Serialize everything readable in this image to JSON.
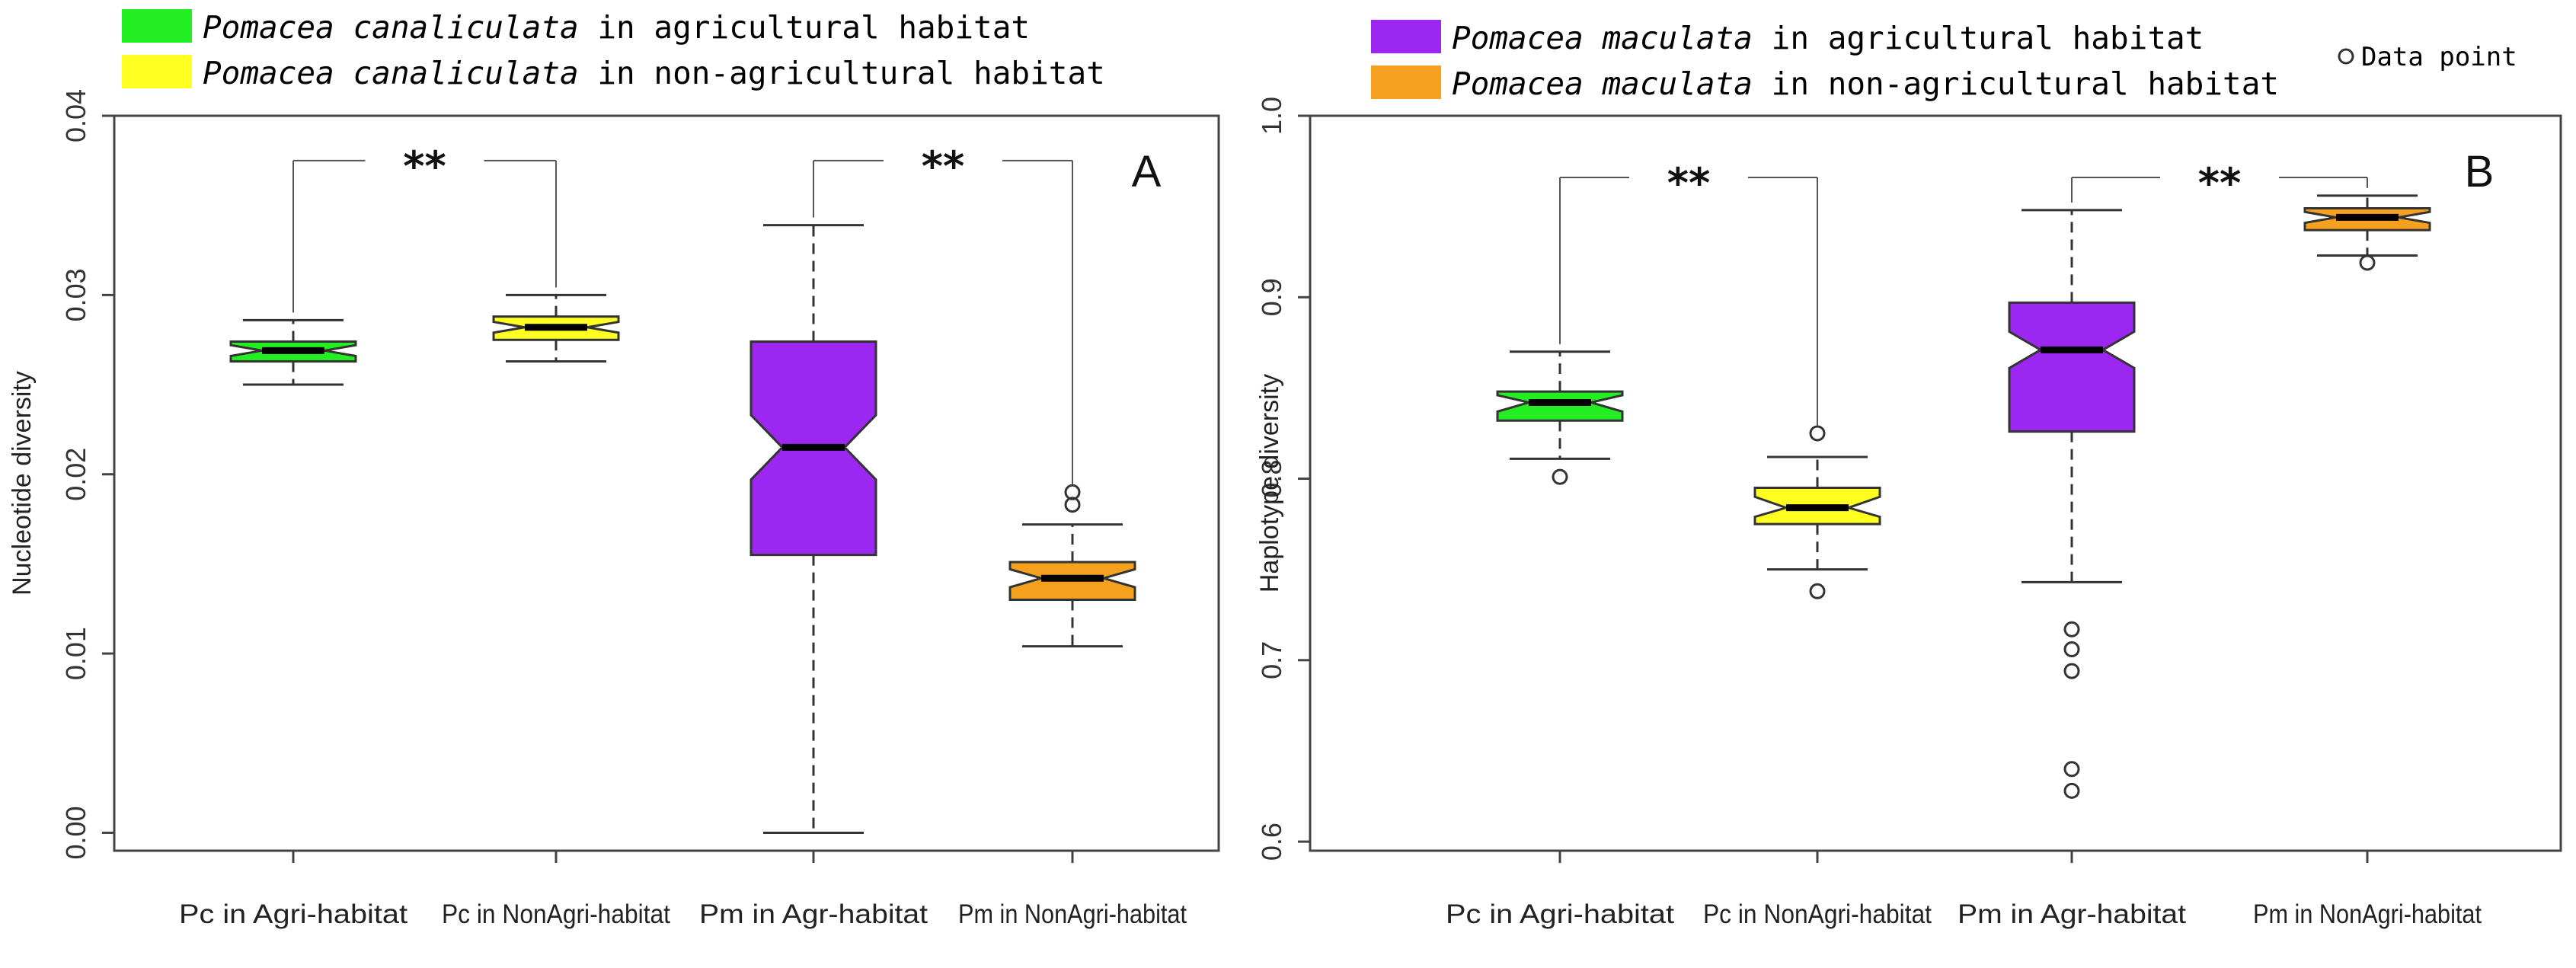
{
  "legend_left": [
    {
      "species": "Pomacea canaliculata",
      "habitat": "in agricultural habitat",
      "color": "#22ee22"
    },
    {
      "species": "Pomacea canaliculata",
      "habitat": "in non-agricultural habitat",
      "color": "#ffff22"
    }
  ],
  "legend_right": [
    {
      "species": "Pomacea maculata",
      "habitat": "in agricultural habitat",
      "color": "#9b27f0"
    },
    {
      "species": "Pomacea maculata",
      "habitat": "in non-agricultural habitat",
      "color": "#f5a11f"
    }
  ],
  "data_point_label": "Data point",
  "chart_data": [
    {
      "type": "box",
      "panel": "A",
      "ylabel": "Nucleotide diversity",
      "ylim": [
        -0.001,
        0.04
      ],
      "yticks": [
        0.0,
        0.01,
        0.02,
        0.03,
        0.04
      ],
      "ytick_labels": [
        "0.00",
        "0.01",
        "0.02",
        "0.03",
        "0.04"
      ],
      "categories": [
        "Pc in Agri-habitat",
        "Pc in NonAgri-habitat",
        "Pm in Agr-habitat",
        "Pm in NonAgri-habitat"
      ],
      "boxes": [
        {
          "whisker_low": 0.025,
          "q1": 0.0263,
          "median": 0.0269,
          "q3": 0.0274,
          "whisker_high": 0.0286,
          "notch_low": 0.0266,
          "notch_high": 0.0272,
          "outliers": [],
          "color": "#22ee22"
        },
        {
          "whisker_low": 0.0263,
          "q1": 0.0275,
          "median": 0.0282,
          "q3": 0.0288,
          "whisker_high": 0.03,
          "notch_low": 0.0279,
          "notch_high": 0.0285,
          "outliers": [],
          "color": "#ffff22"
        },
        {
          "whisker_low": 0.0,
          "q1": 0.0155,
          "median": 0.0215,
          "q3": 0.0274,
          "whisker_high": 0.0339,
          "notch_low": 0.0197,
          "notch_high": 0.0233,
          "outliers": [],
          "color": "#9b27f0"
        },
        {
          "whisker_low": 0.0104,
          "q1": 0.013,
          "median": 0.0142,
          "q3": 0.0151,
          "whisker_high": 0.0172,
          "notch_low": 0.0137,
          "notch_high": 0.0147,
          "outliers": [
            0.0183,
            0.019
          ],
          "color": "#f5a11f"
        }
      ],
      "significance": [
        {
          "from": 0,
          "to": 1,
          "label": "**",
          "y": 0.0375
        },
        {
          "from": 2,
          "to": 3,
          "label": "**",
          "y": 0.0375
        }
      ]
    },
    {
      "type": "box",
      "panel": "B",
      "ylabel": "Haplotype diversity",
      "ylim": [
        0.595,
        1.0
      ],
      "yticks": [
        0.6,
        0.7,
        0.8,
        0.9,
        1.0
      ],
      "ytick_labels": [
        "0.6",
        "0.7",
        "0.8",
        "0.9",
        "1.0"
      ],
      "categories": [
        "Pc in Agri-habitat",
        "Pc in NonAgri-habitat",
        "Pm in Agr-habitat",
        "Pm in NonAgri-habitat"
      ],
      "boxes": [
        {
          "whisker_low": 0.811,
          "q1": 0.832,
          "median": 0.842,
          "q3": 0.848,
          "whisker_high": 0.87,
          "notch_low": 0.837,
          "notch_high": 0.846,
          "outliers": [
            0.801
          ],
          "color": "#22ee22"
        },
        {
          "whisker_low": 0.75,
          "q1": 0.775,
          "median": 0.784,
          "q3": 0.795,
          "whisker_high": 0.812,
          "notch_low": 0.779,
          "notch_high": 0.79,
          "outliers": [
            0.825,
            0.738
          ],
          "color": "#ffff22"
        },
        {
          "whisker_low": 0.743,
          "q1": 0.826,
          "median": 0.871,
          "q3": 0.897,
          "whisker_high": 0.948,
          "notch_low": 0.861,
          "notch_high": 0.881,
          "outliers": [
            0.717,
            0.706,
            0.694,
            0.64,
            0.628
          ],
          "color": "#9b27f0"
        },
        {
          "whisker_low": 0.923,
          "q1": 0.937,
          "median": 0.944,
          "q3": 0.949,
          "whisker_high": 0.956,
          "notch_low": 0.941,
          "notch_high": 0.947,
          "outliers": [
            0.919
          ],
          "color": "#f5a11f"
        }
      ],
      "significance": [
        {
          "from": 0,
          "to": 1,
          "label": "**",
          "y": 0.966
        },
        {
          "from": 2,
          "to": 3,
          "label": "**",
          "y": 0.966
        }
      ]
    }
  ]
}
